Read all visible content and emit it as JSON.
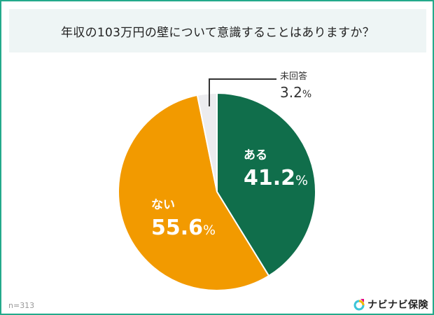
{
  "title": "年収の103万円の壁について意識することはありますか？",
  "sample": "n=313",
  "brand": {
    "name": "ナビナビ保険",
    "icon": "navinavi-logo-icon"
  },
  "colors": {
    "border": "#23a98b",
    "aru": "#106e4b",
    "nai": "#f29a00",
    "mi": "#ececef",
    "title_bg": "#eef5f5"
  },
  "slices": [
    {
      "label": "ある",
      "value": "41.2",
      "pct": "%"
    },
    {
      "label": "ない",
      "value": "55.6",
      "pct": "%"
    },
    {
      "label": "未回答",
      "value": "3.2",
      "pct": "%"
    }
  ],
  "chart_data": {
    "type": "pie",
    "title": "年収の103万円の壁について意識することはありますか？",
    "categories": [
      "ある",
      "ない",
      "未回答"
    ],
    "values": [
      41.2,
      55.6,
      3.2
    ],
    "colors": [
      "#106e4b",
      "#f29a00",
      "#ececef"
    ],
    "start_angle": "12 o'clock, clockwise",
    "annotations": [
      "n=313"
    ],
    "legend": "none (inline labels)"
  }
}
